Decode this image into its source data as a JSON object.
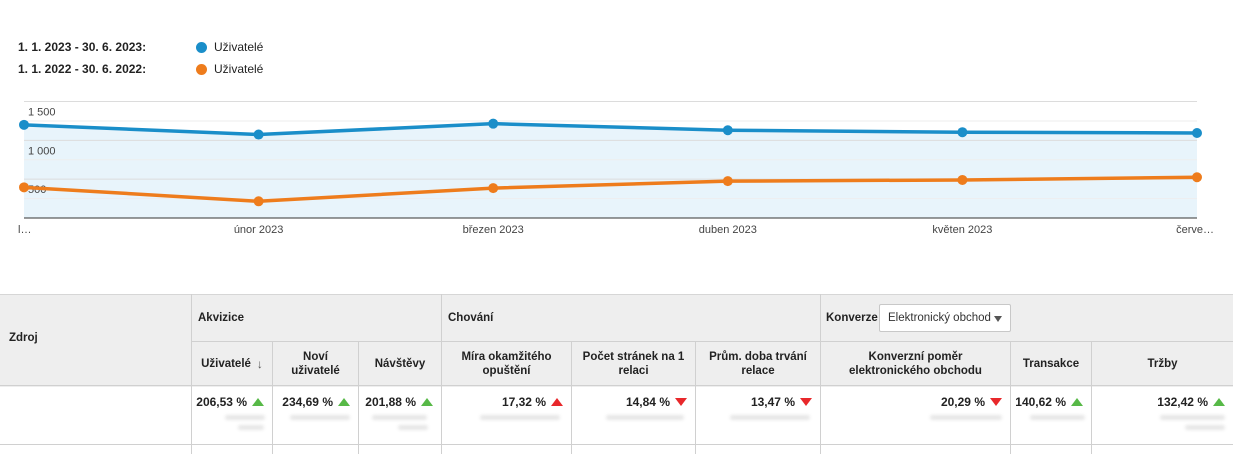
{
  "legend": [
    {
      "range": "1. 1. 2023 - 30. 6. 2023:",
      "name": "Uživatelé",
      "color": "#1a8ec9"
    },
    {
      "range": "1. 1. 2022 - 30. 6. 2022:",
      "name": "Uživatelé",
      "color": "#ee7c1c"
    }
  ],
  "chart_data": {
    "type": "line",
    "x": [
      "l…",
      "únor 2023",
      "březen 2023",
      "duben 2023",
      "květen 2023",
      "červe…"
    ],
    "y_ticks": [
      "1 500",
      "1 000",
      "500"
    ],
    "ylim": [
      0,
      1700
    ],
    "grid": true,
    "series": [
      {
        "name": "1. 1. 2023 - 30. 6. 2023: Uživatelé",
        "color": "#1a8ec9",
        "values": [
          1200,
          1075,
          1215,
          1130,
          1105,
          1095
        ]
      },
      {
        "name": "1. 1. 2022 - 30. 6. 2022: Uživatelé",
        "color": "#ee7c1c",
        "values": [
          395,
          215,
          385,
          475,
          490,
          525
        ]
      }
    ]
  },
  "table": {
    "source_header": "Zdroj",
    "group_acquisition": "Akvizice",
    "group_behavior": "Chování",
    "group_conversion": "Konverze",
    "conversion_select": "Elektronický obchod",
    "columns": [
      {
        "label": "Uživatelé",
        "value": "206,53 %",
        "trend": "up-green"
      },
      {
        "label": "Noví uživatelé",
        "value": "234,69 %",
        "trend": "up-green"
      },
      {
        "label": "Návštěvy",
        "value": "201,88 %",
        "trend": "up-green"
      },
      {
        "label": "Míra okamžitého opuštění",
        "value": "17,32 %",
        "trend": "up-red"
      },
      {
        "label": "Počet stránek na 1 relaci",
        "value": "14,84 %",
        "trend": "down-red"
      },
      {
        "label": "Prům. doba trvání relace",
        "value": "13,47 %",
        "trend": "down-red"
      },
      {
        "label": "Konverzní poměr elektronického obchodu",
        "value": "20,29 %",
        "trend": "down-red"
      },
      {
        "label": "Transakce",
        "value": "140,62 %",
        "trend": "up-green"
      },
      {
        "label": "Tržby",
        "value": "132,42 %",
        "trend": "up-green"
      }
    ]
  }
}
